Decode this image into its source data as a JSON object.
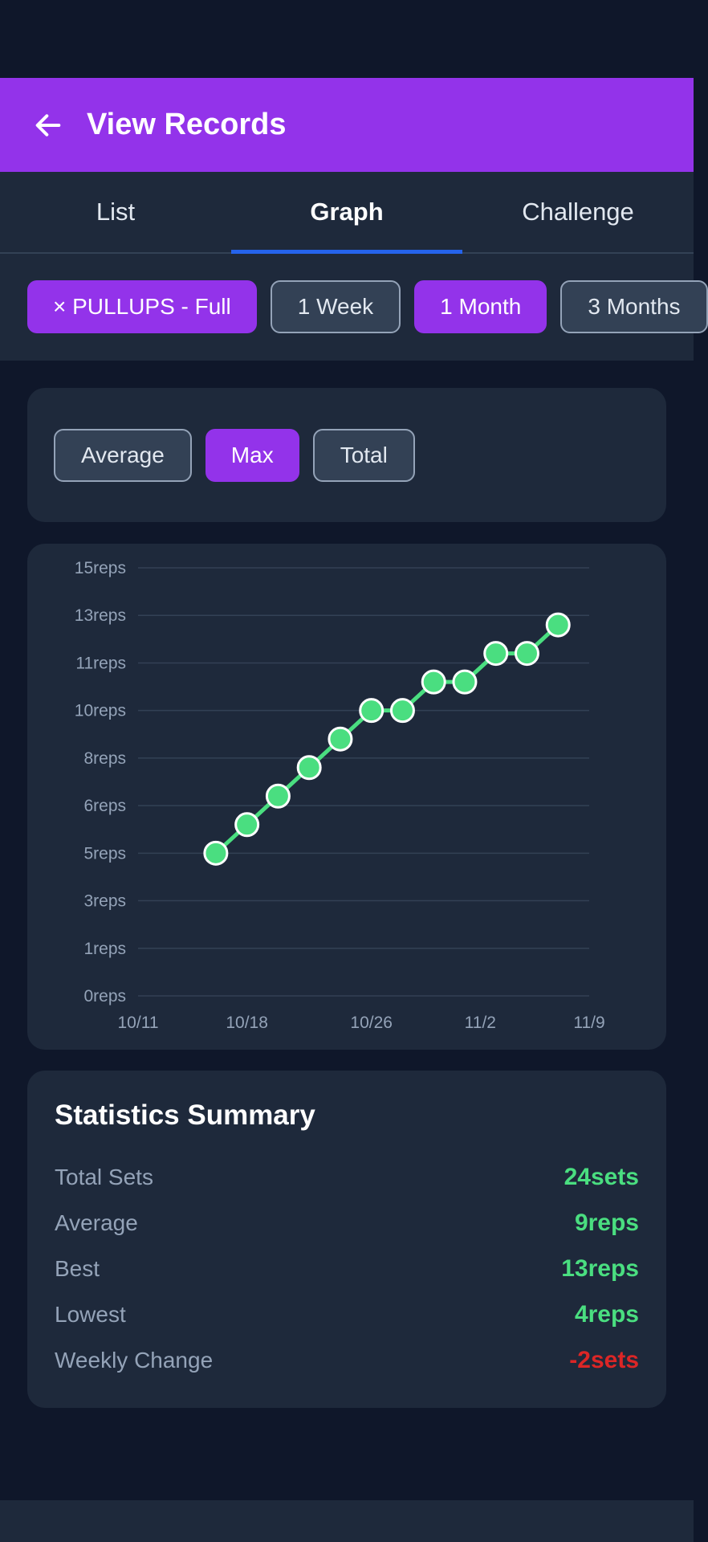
{
  "app": {
    "title": "View Records"
  },
  "tabs": [
    {
      "label": "List",
      "active": false
    },
    {
      "label": "Graph",
      "active": true
    },
    {
      "label": "Challenge",
      "active": false
    }
  ],
  "filters": [
    {
      "label": "× PULLUPS - Full",
      "selected": true
    },
    {
      "label": "1 Week",
      "selected": false
    },
    {
      "label": "1 Month",
      "selected": true
    },
    {
      "label": "3 Months",
      "selected": false
    }
  ],
  "aggregations": [
    {
      "label": "Average",
      "selected": false
    },
    {
      "label": "Max",
      "selected": true
    },
    {
      "label": "Total",
      "selected": false
    }
  ],
  "chart_data": {
    "type": "line",
    "x_tick_labels": [
      "10/11",
      "10/18",
      "10/26",
      "11/2",
      "11/9"
    ],
    "y_tick_labels": [
      "0reps",
      "1reps",
      "3reps",
      "5reps",
      "6reps",
      "8reps",
      "10reps",
      "11reps",
      "13reps",
      "15reps"
    ],
    "ylim": [
      0,
      15
    ],
    "xlim": [
      "10/11",
      "11/9"
    ],
    "x": [
      "10/16",
      "10/18",
      "10/20",
      "10/22",
      "10/24",
      "10/26",
      "10/28",
      "10/30",
      "11/1",
      "11/3",
      "11/5",
      "11/7"
    ],
    "series": [
      {
        "values": [
          5,
          6,
          7,
          8,
          9,
          10,
          10,
          11,
          11,
          12,
          12,
          13
        ]
      }
    ],
    "grid": true,
    "colors": {
      "line": "#4ade80",
      "marker_fill": "#4ade80",
      "marker_stroke": "#ffffff",
      "grid": "#334155"
    }
  },
  "stats": {
    "title": "Statistics Summary",
    "rows": [
      {
        "label": "Total Sets",
        "value": "24sets",
        "negative": false
      },
      {
        "label": "Average",
        "value": "9reps",
        "negative": false
      },
      {
        "label": "Best",
        "value": "13reps",
        "negative": false
      },
      {
        "label": "Lowest",
        "value": "4reps",
        "negative": false
      },
      {
        "label": "Weekly Change",
        "value": "-2sets",
        "negative": true
      }
    ]
  },
  "icons": {
    "back": "arrow-left-icon"
  }
}
